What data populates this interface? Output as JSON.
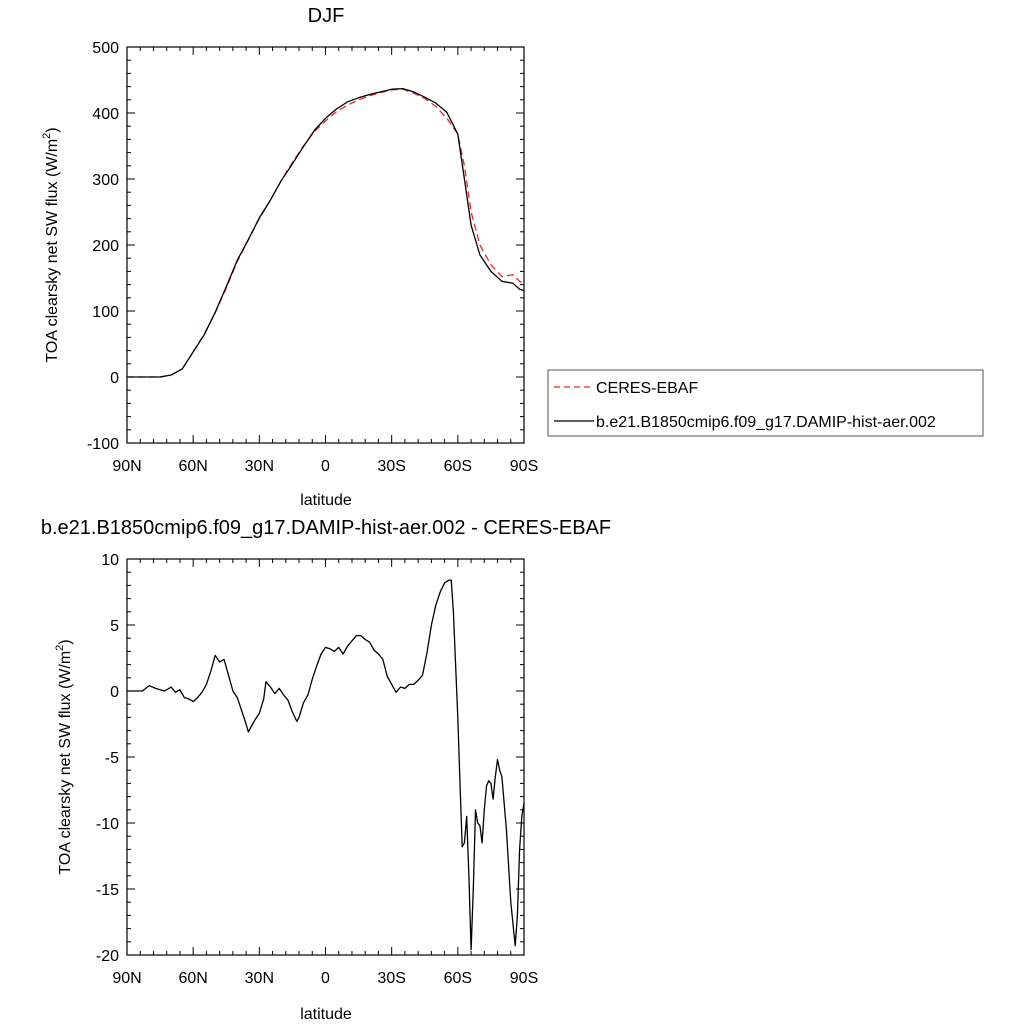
{
  "chart_data": [
    {
      "type": "line",
      "title": "DJF",
      "xlabel": "latitude",
      "ylabel": "TOA clearsky net SW flux (W/m",
      "ylabel_sup": "2",
      "ylabel_close": ")",
      "xlim": [
        -90,
        90
      ],
      "ylim": [
        -100,
        500
      ],
      "x_ticks": [
        {
          "value": -90,
          "label": "90N"
        },
        {
          "value": -60,
          "label": "60N"
        },
        {
          "value": -30,
          "label": "30N"
        },
        {
          "value": 0,
          "label": "0"
        },
        {
          "value": 30,
          "label": "30S"
        },
        {
          "value": 60,
          "label": "60S"
        },
        {
          "value": 90,
          "label": "90S"
        }
      ],
      "y_ticks": [
        {
          "value": -100,
          "label": "-100"
        },
        {
          "value": 0,
          "label": "0"
        },
        {
          "value": 100,
          "label": "100"
        },
        {
          "value": 200,
          "label": "200"
        },
        {
          "value": 300,
          "label": "300"
        },
        {
          "value": 400,
          "label": "400"
        },
        {
          "value": 500,
          "label": "500"
        }
      ],
      "legend": "right",
      "series": [
        {
          "name": "CERES-EBAF",
          "color": "#e8262b",
          "dash": "dashed",
          "x": [
            -90,
            -80,
            -75,
            -70,
            -65,
            -60,
            -55,
            -50,
            -45,
            -40,
            -35,
            -30,
            -25,
            -20,
            -15,
            -10,
            -5,
            0,
            5,
            10,
            15,
            20,
            25,
            30,
            35,
            40,
            45,
            50,
            55,
            60,
            63,
            66,
            70,
            75,
            80,
            85,
            88,
            90
          ],
          "y": [
            0,
            0,
            0,
            3,
            12,
            38,
            65,
            97,
            135,
            175,
            208,
            240,
            268,
            298,
            325,
            350,
            372,
            388,
            402,
            412,
            420,
            426,
            431,
            435,
            436,
            430,
            422,
            410,
            392,
            368,
            320,
            250,
            200,
            170,
            152,
            155,
            145,
            142
          ]
        },
        {
          "name": "b.e21.B1850cmip6.f09_g17.DAMIP-hist-aer.002",
          "color": "#000000",
          "dash": "solid",
          "x": [
            -90,
            -80,
            -75,
            -70,
            -65,
            -60,
            -55,
            -50,
            -45,
            -40,
            -35,
            -30,
            -25,
            -20,
            -15,
            -10,
            -5,
            0,
            5,
            10,
            15,
            20,
            25,
            30,
            35,
            40,
            45,
            50,
            55,
            60,
            63,
            66,
            70,
            75,
            80,
            85,
            88,
            90
          ],
          "y": [
            0,
            0,
            0,
            3,
            12,
            38,
            64,
            98,
            137,
            177,
            208,
            241,
            268,
            298,
            323,
            349,
            374,
            392,
            406,
            417,
            423,
            428,
            432,
            436,
            437,
            432,
            424,
            415,
            401,
            368,
            300,
            230,
            185,
            160,
            145,
            142,
            133,
            131
          ]
        }
      ]
    },
    {
      "type": "line",
      "title": "b.e21.B1850cmip6.f09_g17.DAMIP-hist-aer.002 - CERES-EBAF",
      "xlabel": "latitude",
      "ylabel": "TOA clearsky net SW flux (W/m",
      "ylabel_sup": "2",
      "ylabel_close": ")",
      "xlim": [
        -90,
        90
      ],
      "ylim": [
        -20,
        10
      ],
      "x_ticks": [
        {
          "value": -90,
          "label": "90N"
        },
        {
          "value": -60,
          "label": "60N"
        },
        {
          "value": -30,
          "label": "30N"
        },
        {
          "value": 0,
          "label": "0"
        },
        {
          "value": 30,
          "label": "30S"
        },
        {
          "value": 60,
          "label": "60S"
        },
        {
          "value": 90,
          "label": "90S"
        }
      ],
      "y_ticks": [
        {
          "value": -20,
          "label": "-20"
        },
        {
          "value": -15,
          "label": "-15"
        },
        {
          "value": -10,
          "label": "-10"
        },
        {
          "value": -5,
          "label": "-5"
        },
        {
          "value": 0,
          "label": "0"
        },
        {
          "value": 5,
          "label": "5"
        },
        {
          "value": 10,
          "label": "10"
        }
      ],
      "series": [
        {
          "name": "",
          "color": "#000000",
          "dash": "solid",
          "x": [
            -90,
            -83,
            -80,
            -77,
            -75,
            -73,
            -71,
            -70,
            -68,
            -66,
            -64,
            -62,
            -60,
            -58,
            -56,
            -54,
            -52,
            -50,
            -48,
            -46,
            -44,
            -42,
            -40,
            -38,
            -36,
            -35,
            -34,
            -32,
            -30,
            -28,
            -27,
            -25,
            -23,
            -21,
            -19,
            -17,
            -15,
            -13,
            -12,
            -10,
            -8,
            -6,
            -4,
            -2,
            0,
            2,
            4,
            6,
            8,
            10,
            12,
            14,
            16,
            18,
            20,
            22,
            24,
            26,
            28,
            30,
            32,
            34,
            36,
            38,
            40,
            42,
            44,
            46,
            48,
            50,
            52,
            54,
            56,
            57,
            58,
            59,
            60,
            61,
            62,
            63,
            64,
            65,
            66,
            67,
            68,
            69,
            70,
            71,
            72,
            73,
            74,
            75,
            76,
            77,
            78,
            79,
            80,
            82,
            84,
            86,
            87,
            88,
            89,
            90
          ],
          "y": [
            0,
            0,
            0.4,
            0.2,
            0.1,
            0,
            0.2,
            0.3,
            -0.1,
            0.1,
            -0.5,
            -0.6,
            -0.8,
            -0.5,
            -0.1,
            0.5,
            1.5,
            2.7,
            2.2,
            2.4,
            1.2,
            0,
            -0.5,
            -1.5,
            -2.5,
            -3.1,
            -2.8,
            -2.2,
            -1.7,
            -0.6,
            0.7,
            0.3,
            -0.2,
            0.2,
            -0.3,
            -0.7,
            -1.6,
            -2.3,
            -2.0,
            -0.9,
            -0.3,
            0.9,
            1.9,
            2.8,
            3.3,
            3.2,
            3.0,
            3.3,
            2.8,
            3.4,
            3.8,
            4.2,
            4.2,
            3.9,
            3.7,
            3.1,
            2.8,
            2.4,
            1.1,
            0.5,
            -0.1,
            0.3,
            0.2,
            0.5,
            0.5,
            0.8,
            1.2,
            2.9,
            5.0,
            6.5,
            7.5,
            8.2,
            8.4,
            8.4,
            6.0,
            2.0,
            -2.0,
            -7.0,
            -11.8,
            -11.5,
            -9.5,
            -14.0,
            -19.6,
            -15.0,
            -9.0,
            -10.0,
            -10.2,
            -11.5,
            -9.0,
            -7.2,
            -6.8,
            -7.0,
            -8.2,
            -6.5,
            -5.2,
            -6.0,
            -6.5,
            -10.5,
            -16.0,
            -19.3,
            -17.0,
            -12.0,
            -9.5,
            -8.5
          ]
        }
      ]
    }
  ]
}
